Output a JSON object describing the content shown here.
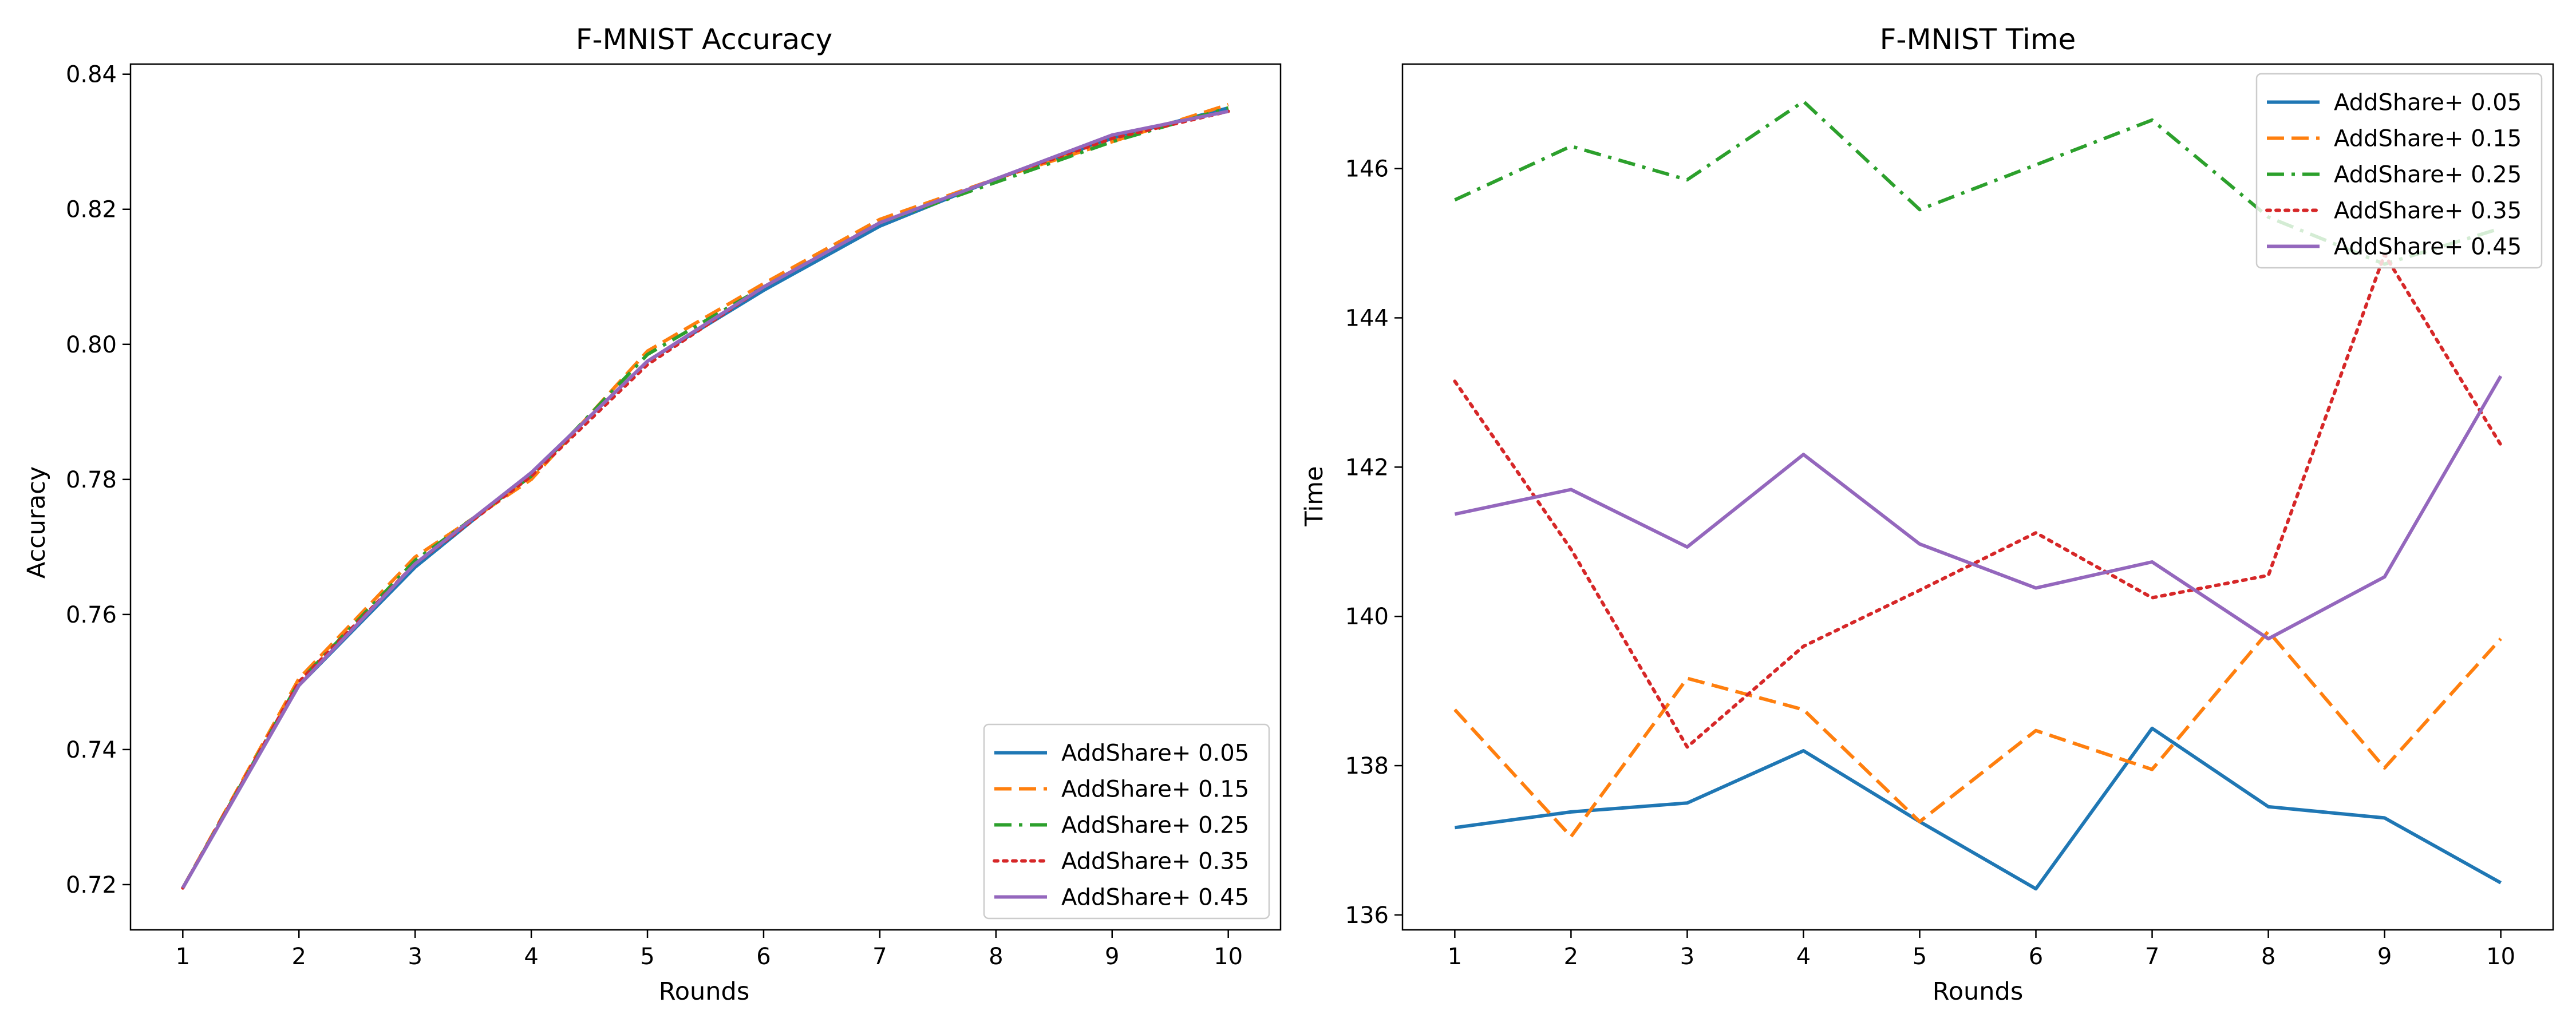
{
  "chart_data": [
    {
      "type": "line",
      "title": "F-MNIST Accuracy",
      "xlabel": "Rounds",
      "ylabel": "Accuracy",
      "x": [
        1,
        2,
        3,
        4,
        5,
        6,
        7,
        8,
        9,
        10
      ],
      "xlim": [
        0.55,
        10.45
      ],
      "ylim": [
        0.7133,
        0.8415
      ],
      "yticks": [
        0.72,
        0.74,
        0.76,
        0.78,
        0.8,
        0.82,
        0.84
      ],
      "ytick_labels": [
        "0.72",
        "0.74",
        "0.76",
        "0.78",
        "0.80",
        "0.82",
        "0.84"
      ],
      "grid": false,
      "legend_position": "lower-right",
      "series": [
        {
          "name": "AddShare+ 0.05",
          "color": "#1f77b4",
          "dash": "solid",
          "values": [
            0.7195,
            0.7495,
            0.767,
            0.781,
            0.7975,
            0.808,
            0.8175,
            0.8245,
            0.8305,
            0.835
          ]
        },
        {
          "name": "AddShare+ 0.15",
          "color": "#ff7f0e",
          "dash": "dashed",
          "values": [
            0.7195,
            0.7505,
            0.7685,
            0.78,
            0.799,
            0.809,
            0.8185,
            0.8245,
            0.83,
            0.8355
          ]
        },
        {
          "name": "AddShare+ 0.25",
          "color": "#2ca02c",
          "dash": "dashdot",
          "values": [
            0.7195,
            0.75,
            0.768,
            0.7805,
            0.7985,
            0.8085,
            0.818,
            0.824,
            0.83,
            0.835
          ]
        },
        {
          "name": "AddShare+ 0.35",
          "color": "#d62728",
          "dash": "dotted",
          "values": [
            0.7195,
            0.75,
            0.7675,
            0.7805,
            0.797,
            0.8085,
            0.818,
            0.8245,
            0.8305,
            0.8345
          ]
        },
        {
          "name": "AddShare+ 0.45",
          "color": "#9467bd",
          "dash": "solid",
          "values": [
            0.7195,
            0.7495,
            0.7675,
            0.781,
            0.7975,
            0.8085,
            0.818,
            0.8245,
            0.831,
            0.8345
          ]
        }
      ]
    },
    {
      "type": "line",
      "title": "F-MNIST Time",
      "xlabel": "Rounds",
      "ylabel": "Time",
      "x": [
        1,
        2,
        3,
        4,
        5,
        6,
        7,
        8,
        9,
        10
      ],
      "xlim": [
        0.55,
        10.45
      ],
      "ylim": [
        135.8,
        147.4
      ],
      "yticks": [
        136,
        138,
        140,
        142,
        144,
        146
      ],
      "ytick_labels": [
        "136",
        "138",
        "140",
        "142",
        "144",
        "146"
      ],
      "grid": false,
      "legend_position": "upper-right",
      "series": [
        {
          "name": "AddShare+ 0.05",
          "color": "#1f77b4",
          "dash": "solid",
          "values": [
            137.17,
            137.38,
            137.5,
            138.2,
            137.25,
            136.35,
            138.5,
            137.45,
            137.3,
            136.43
          ]
        },
        {
          "name": "AddShare+ 0.15",
          "color": "#ff7f0e",
          "dash": "dashed",
          "values": [
            138.75,
            137.05,
            139.17,
            138.75,
            137.25,
            138.47,
            137.95,
            139.8,
            137.97,
            139.7
          ]
        },
        {
          "name": "AddShare+ 0.25",
          "color": "#2ca02c",
          "dash": "dashdot",
          "values": [
            145.58,
            146.3,
            145.85,
            146.9,
            145.45,
            146.05,
            146.65,
            145.35,
            144.72,
            145.2
          ]
        },
        {
          "name": "AddShare+ 0.35",
          "color": "#d62728",
          "dash": "dotted",
          "values": [
            143.15,
            140.9,
            138.25,
            139.6,
            140.35,
            141.12,
            140.25,
            140.55,
            144.85,
            142.3
          ]
        },
        {
          "name": "AddShare+ 0.45",
          "color": "#9467bd",
          "dash": "solid",
          "values": [
            141.37,
            141.7,
            140.93,
            142.17,
            140.97,
            140.38,
            140.73,
            139.7,
            140.53,
            143.22
          ]
        }
      ]
    }
  ]
}
